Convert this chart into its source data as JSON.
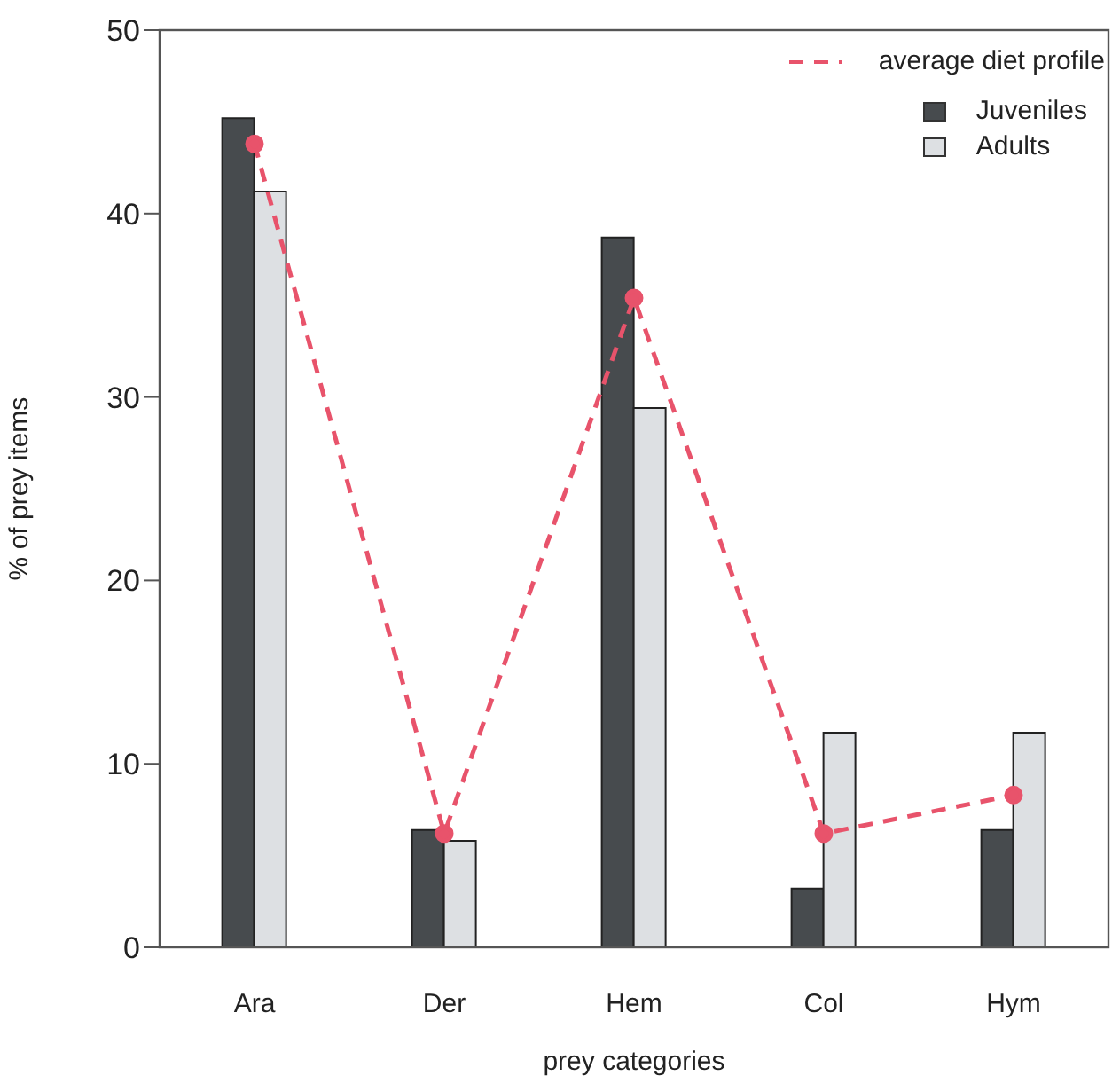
{
  "chart_data": {
    "type": "bar",
    "xlabel": "prey categories",
    "ylabel": "% of prey items",
    "categories": [
      "Ara",
      "Der",
      "Hem",
      "Col",
      "Hym"
    ],
    "series": [
      {
        "name": "Juveniles",
        "color": "#474b4e",
        "values": [
          45.2,
          6.4,
          38.7,
          3.2,
          6.4
        ]
      },
      {
        "name": "Adults",
        "color": "#dde0e3",
        "values": [
          41.2,
          5.8,
          29.4,
          11.7,
          11.7
        ]
      },
      {
        "name": "average diet profile",
        "type": "line",
        "color": "#e8536b",
        "values": [
          43.8,
          6.2,
          35.4,
          6.2,
          8.3
        ],
        "marker": "circle",
        "line_style": "dashed"
      }
    ],
    "ylim": [
      0,
      50
    ],
    "yticks": [
      0,
      10,
      20,
      30,
      40,
      50
    ],
    "legend": "top right",
    "grid": false
  }
}
